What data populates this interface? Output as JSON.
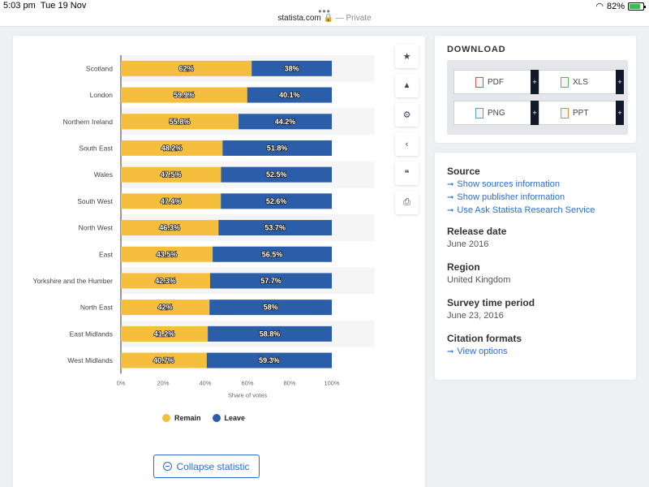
{
  "statusbar": {
    "time": "5:03 pm",
    "date": "Tue 19 Nov",
    "battery": "82%"
  },
  "browser": {
    "url": "statista.com",
    "private_label": "— Private"
  },
  "tools": [
    {
      "name": "star-icon",
      "glyph": "★"
    },
    {
      "name": "bell-icon",
      "glyph": "🔔"
    },
    {
      "name": "gear-icon",
      "glyph": "⚙"
    },
    {
      "name": "share-icon",
      "glyph": "<"
    },
    {
      "name": "quote-icon",
      "glyph": "❝"
    },
    {
      "name": "print-icon",
      "glyph": "⎙"
    }
  ],
  "chart_data": {
    "type": "bar",
    "orientation": "horizontal",
    "stacked": true,
    "categories": [
      "Scotland",
      "London",
      "Northern Ireland",
      "South East",
      "Wales",
      "South West",
      "North West",
      "East",
      "Yorkshire and the Humber",
      "North East",
      "East Midlands",
      "West Midlands"
    ],
    "series": [
      {
        "name": "Remain",
        "color": "#f5be3c",
        "values": [
          62,
          59.9,
          55.8,
          48.2,
          47.5,
          47.4,
          46.3,
          43.5,
          42.3,
          42,
          41.2,
          40.7
        ],
        "labels": [
          "62%",
          "59.9%",
          "55.8%",
          "48.2%",
          "47.5%",
          "47.4%",
          "46.3%",
          "43.5%",
          "42.3%",
          "42%",
          "41.2%",
          "40.7%"
        ]
      },
      {
        "name": "Leave",
        "color": "#2b5ea8",
        "values": [
          38,
          40.1,
          44.2,
          51.8,
          52.5,
          52.6,
          53.7,
          56.5,
          57.7,
          58,
          58.8,
          59.3
        ],
        "labels": [
          "38%",
          "40.1%",
          "44.2%",
          "51.8%",
          "52.5%",
          "52.6%",
          "53.7%",
          "56.5%",
          "57.7%",
          "58%",
          "58.8%",
          "59.3%"
        ]
      }
    ],
    "xlim": [
      0,
      100
    ],
    "xticks": [
      "0%",
      "20%",
      "40%",
      "60%",
      "80%",
      "100%"
    ],
    "xlabel": "Share of votes",
    "ylabel": "",
    "legend_position": "bottom",
    "grid": false
  },
  "legend": {
    "remain": "Remain",
    "leave": "Leave"
  },
  "collapse_label": "Collapse statistic",
  "download": {
    "title": "DOWNLOAD",
    "buttons": [
      {
        "label": "PDF",
        "color": "#d9534f"
      },
      {
        "label": "XLS",
        "color": "#5cb85c"
      },
      {
        "label": "PNG",
        "color": "#5b9bd5"
      },
      {
        "label": "PPT",
        "color": "#e8873a"
      }
    ],
    "plus": "+"
  },
  "info": {
    "source_heading": "Source",
    "source_links": [
      "Show sources information",
      "Show publisher information",
      "Use Ask Statista Research Service"
    ],
    "release_heading": "Release date",
    "release_value": "June 2016",
    "region_heading": "Region",
    "region_value": "United Kingdom",
    "survey_heading": "Survey time period",
    "survey_value": "June 23, 2016",
    "citation_heading": "Citation formats",
    "citation_link": "View options"
  }
}
